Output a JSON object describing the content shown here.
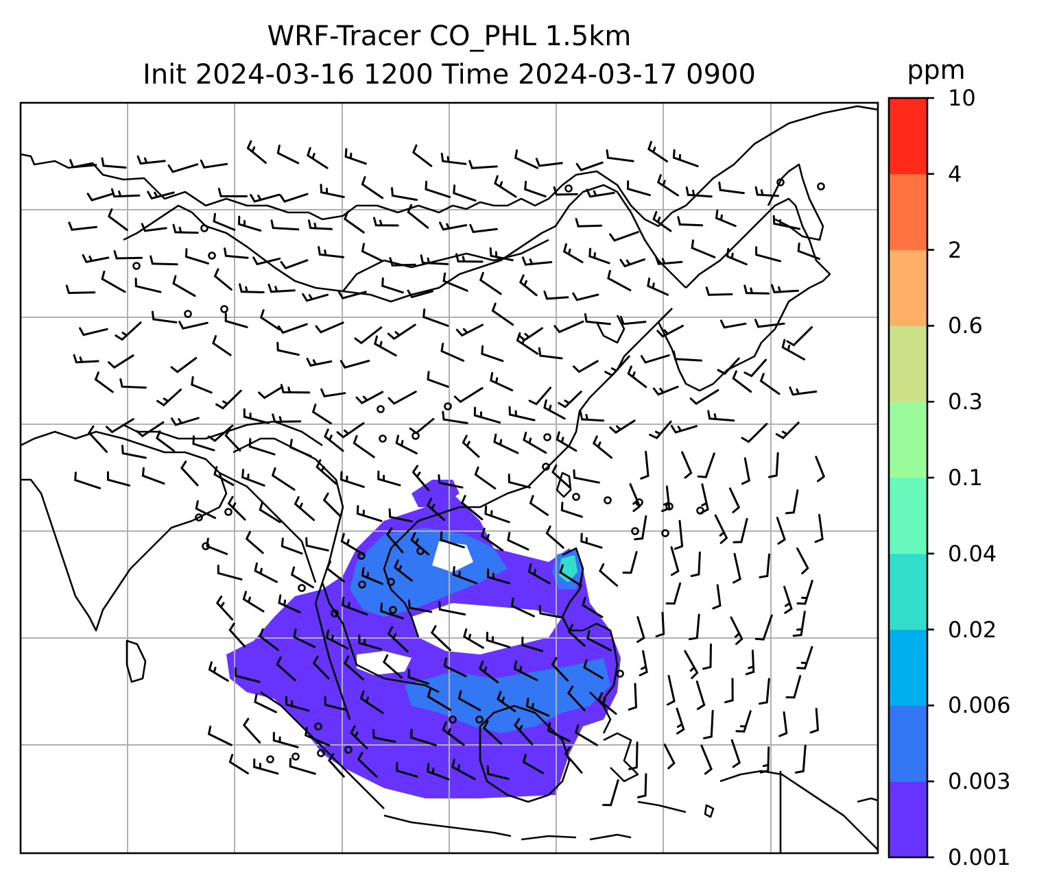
{
  "title": {
    "line1": "WRF-Tracer CO_PHL 1.5km",
    "line2": "Init 2024-03-16 1200 Time 2024-03-17 0900"
  },
  "colorbar": {
    "unit": "ppm",
    "ticks": [
      "0.001",
      "0.003",
      "0.006",
      "0.02",
      "0.04",
      "0.1",
      "0.3",
      "0.6",
      "2",
      "4",
      "10"
    ],
    "colors": [
      "#6633ff",
      "#3377f4",
      "#00b0ee",
      "#33ddcc",
      "#66f9bb",
      "#99fb99",
      "#cce088",
      "#ffaf66",
      "#ff7340",
      "#ff2a1a"
    ]
  },
  "map": {
    "description_fields": {
      "frame_color": "#000000",
      "grid_color": "#b0b0b0",
      "coast_color": "#000000",
      "barb_color": "#000000"
    }
  }
}
